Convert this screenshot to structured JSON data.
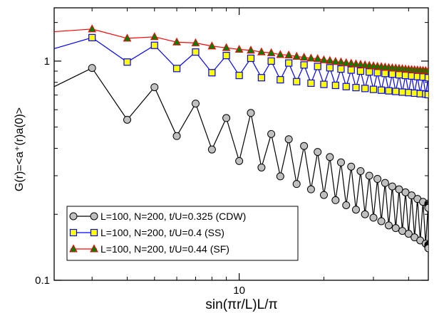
{
  "chart_data": {
    "type": "line",
    "title": "",
    "xlabel": "sin(πr/L)L/π",
    "ylabel": "G(r)=<a⁺(r)a(0)>",
    "x_scale": "log",
    "y_scale": "log",
    "xlim": [
      2.2,
      47
    ],
    "ylim": [
      0.1,
      1.75
    ],
    "x_ticks": [
      {
        "value": 10,
        "label": "10"
      }
    ],
    "y_ticks": [
      {
        "value": 0.1,
        "label": "0.1"
      },
      {
        "value": 1,
        "label": "1"
      }
    ],
    "legend_position": "bottom-left",
    "grid": false,
    "series": [
      {
        "name": "L=100, N=200, t/U=0.325 (CDW)",
        "color": "#000000",
        "marker": "circle",
        "marker_fill": "#c0c0c0",
        "points": [
          [
            2,
            0.72
          ],
          [
            3,
            0.93
          ],
          [
            4,
            0.54
          ],
          [
            5,
            0.76
          ],
          [
            6,
            0.455
          ],
          [
            7,
            0.64
          ],
          [
            8,
            0.395
          ],
          [
            9,
            0.55
          ],
          [
            10,
            0.35
          ],
          [
            11,
            0.58
          ],
          [
            12,
            0.327
          ],
          [
            13,
            0.465
          ],
          [
            14,
            0.298
          ],
          [
            15,
            0.44
          ],
          [
            16,
            0.275
          ],
          [
            17,
            0.41
          ],
          [
            18,
            0.26
          ],
          [
            19,
            0.385
          ],
          [
            20,
            0.245
          ],
          [
            21,
            0.365
          ],
          [
            22,
            0.232
          ],
          [
            23,
            0.345
          ],
          [
            24,
            0.22
          ],
          [
            25,
            0.33
          ],
          [
            26,
            0.21
          ],
          [
            27,
            0.315
          ],
          [
            28,
            0.2
          ],
          [
            29,
            0.3
          ],
          [
            30,
            0.193
          ],
          [
            31,
            0.29
          ],
          [
            32,
            0.186
          ],
          [
            33,
            0.278
          ],
          [
            34,
            0.178
          ],
          [
            35,
            0.268
          ],
          [
            36,
            0.173
          ],
          [
            37,
            0.26
          ],
          [
            38,
            0.168
          ],
          [
            39,
            0.252
          ],
          [
            40,
            0.163
          ],
          [
            41,
            0.244
          ],
          [
            42,
            0.157
          ],
          [
            43,
            0.235
          ],
          [
            44,
            0.152
          ],
          [
            45,
            0.228
          ],
          [
            46,
            0.147
          ],
          [
            47,
            0.224
          ],
          [
            47,
            0.145
          ],
          [
            47,
            0.221
          ],
          [
            47,
            0.144
          ],
          [
            47,
            0.22
          ],
          [
            47,
            0.143
          ],
          [
            47,
            0.218
          ],
          [
            47,
            0.142
          ],
          [
            47,
            0.216
          ],
          [
            47,
            0.141
          ],
          [
            47,
            0.214
          ],
          [
            47,
            0.14
          ]
        ]
      },
      {
        "name": "L=100, N=200, t/U=0.4 (SS)",
        "color": "#0000ff",
        "marker": "square",
        "marker_fill": "#ffff00",
        "points": [
          [
            2,
            1.1
          ],
          [
            3,
            1.28
          ],
          [
            4,
            0.99
          ],
          [
            5,
            1.18
          ],
          [
            6,
            0.925
          ],
          [
            7,
            1.1
          ],
          [
            8,
            0.885
          ],
          [
            9,
            1.06
          ],
          [
            10,
            0.86
          ],
          [
            11,
            1.03
          ],
          [
            12,
            0.84
          ],
          [
            13,
            1.0
          ],
          [
            14,
            0.822
          ],
          [
            15,
            0.98
          ],
          [
            16,
            0.806
          ],
          [
            17,
            0.96
          ],
          [
            18,
            0.793
          ],
          [
            19,
            0.945
          ],
          [
            20,
            0.783
          ],
          [
            21,
            0.932
          ],
          [
            22,
            0.775
          ],
          [
            23,
            0.92
          ],
          [
            24,
            0.765
          ],
          [
            25,
            0.91
          ],
          [
            26,
            0.757
          ],
          [
            27,
            0.9
          ],
          [
            28,
            0.75
          ],
          [
            29,
            0.892
          ],
          [
            30,
            0.743
          ],
          [
            31,
            0.885
          ],
          [
            32,
            0.737
          ],
          [
            33,
            0.878
          ],
          [
            34,
            0.732
          ],
          [
            35,
            0.872
          ],
          [
            36,
            0.727
          ],
          [
            37,
            0.866
          ],
          [
            38,
            0.722
          ],
          [
            39,
            0.86
          ],
          [
            40,
            0.718
          ],
          [
            41,
            0.855
          ],
          [
            42,
            0.714
          ],
          [
            43,
            0.85
          ],
          [
            44,
            0.71
          ],
          [
            45,
            0.846
          ],
          [
            46,
            0.707
          ],
          [
            47,
            0.842
          ],
          [
            47,
            0.705
          ],
          [
            47,
            0.84
          ],
          [
            47,
            0.703
          ]
        ]
      },
      {
        "name": "L=100, N=200, t/U=0.44 (SF)",
        "color": "#ff0000",
        "marker": "triangle",
        "marker_fill": "#008000",
        "points": [
          [
            2,
            1.35
          ],
          [
            3,
            1.4
          ],
          [
            4,
            1.27
          ],
          [
            5,
            1.29
          ],
          [
            6,
            1.22
          ],
          [
            7,
            1.21
          ],
          [
            8,
            1.17
          ],
          [
            9,
            1.15
          ],
          [
            10,
            1.13
          ],
          [
            11,
            1.12
          ],
          [
            12,
            1.1
          ],
          [
            13,
            1.09
          ],
          [
            14,
            1.07
          ],
          [
            15,
            1.065
          ],
          [
            16,
            1.05
          ],
          [
            17,
            1.04
          ],
          [
            18,
            1.03
          ],
          [
            19,
            1.025
          ],
          [
            20,
            1.012
          ],
          [
            21,
            1.005
          ],
          [
            22,
            0.995
          ],
          [
            23,
            0.99
          ],
          [
            24,
            0.982
          ],
          [
            25,
            0.976
          ],
          [
            26,
            0.97
          ],
          [
            27,
            0.965
          ],
          [
            28,
            0.96
          ],
          [
            29,
            0.955
          ],
          [
            30,
            0.95
          ],
          [
            31,
            0.946
          ],
          [
            32,
            0.942
          ],
          [
            33,
            0.938
          ],
          [
            34,
            0.934
          ],
          [
            35,
            0.931
          ],
          [
            36,
            0.928
          ],
          [
            37,
            0.925
          ],
          [
            38,
            0.922
          ],
          [
            39,
            0.919
          ],
          [
            40,
            0.916
          ],
          [
            41,
            0.914
          ],
          [
            42,
            0.912
          ],
          [
            43,
            0.91
          ],
          [
            44,
            0.908
          ],
          [
            45,
            0.906
          ],
          [
            46,
            0.904
          ],
          [
            47,
            0.902
          ]
        ]
      }
    ]
  }
}
